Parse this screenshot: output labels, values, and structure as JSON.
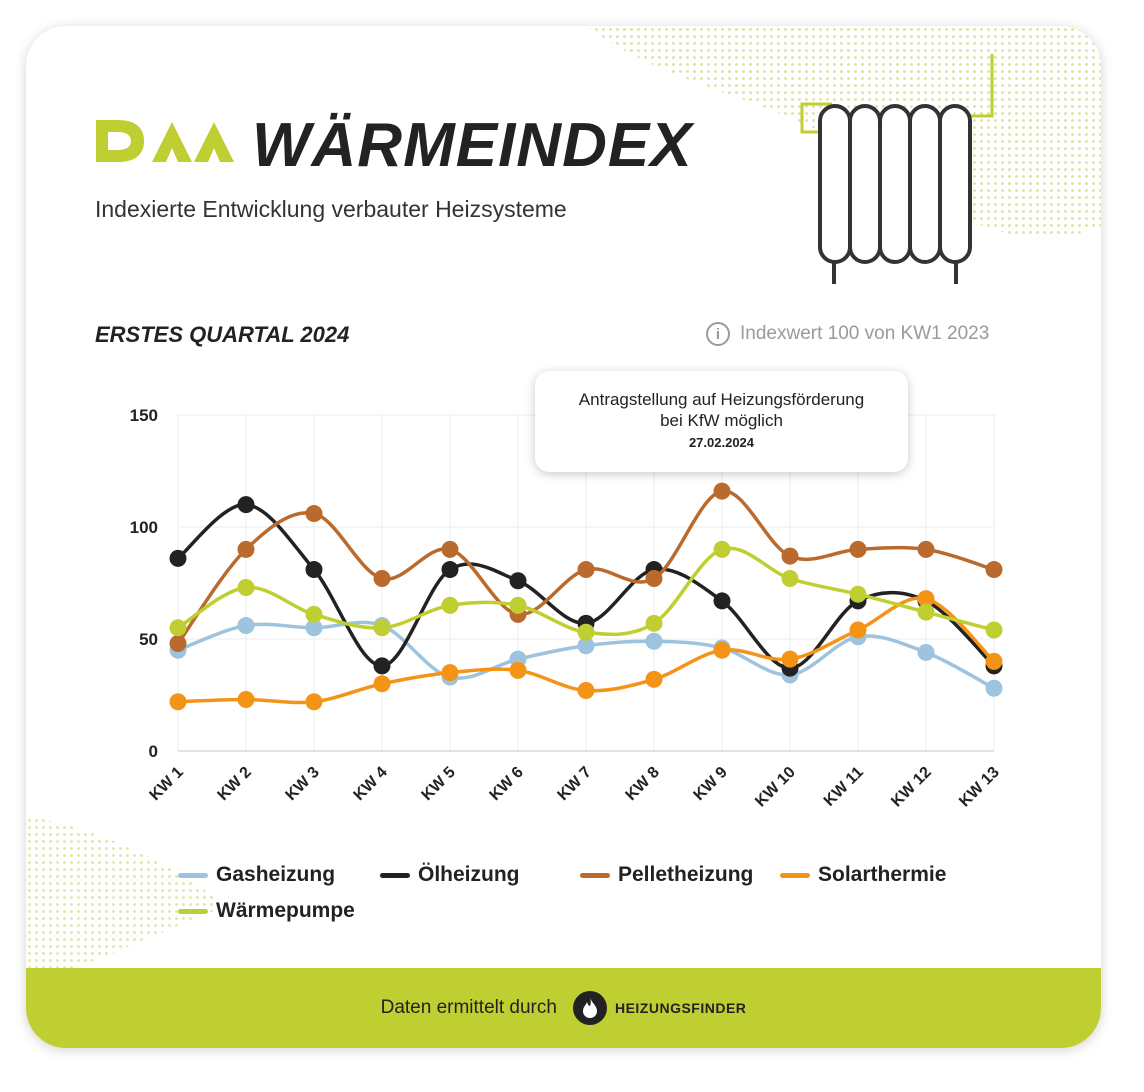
{
  "header": {
    "logo_text": "DAA",
    "title": "WÄRMEINDEX",
    "subtitle": "Indexierte Entwicklung verbauter Heizsysteme"
  },
  "section": {
    "title": "ERSTES QUARTAL 2024",
    "info": "Indexwert 100 von KW1 2023"
  },
  "tooltip": {
    "line1": "Antragstellung auf Heizungsförderung",
    "line2": "bei KfW möglich",
    "date": "27.02.2024"
  },
  "chart_data": {
    "type": "line",
    "categories": [
      "KW 1",
      "KW 2",
      "KW 3",
      "KW 4",
      "KW 5",
      "KW 6",
      "KW 7",
      "KW 8",
      "KW 9",
      "KW 10",
      "KW 11",
      "KW 12",
      "KW 13"
    ],
    "ylim": [
      0,
      150
    ],
    "yticks": [
      0,
      50,
      100,
      150
    ],
    "grid": true,
    "smooth": true,
    "legend_position": "bottom",
    "series": [
      {
        "name": "Gasheizung",
        "color": "#9dc3de",
        "values": [
          45,
          56,
          55,
          56,
          33,
          41,
          47,
          49,
          46,
          34,
          51,
          44,
          28
        ]
      },
      {
        "name": "Ölheizung",
        "color": "#222222",
        "values": [
          86,
          110,
          81,
          38,
          81,
          76,
          57,
          81,
          67,
          37,
          67,
          67,
          38
        ]
      },
      {
        "name": "Pelletheizung",
        "color": "#b96a2c",
        "values": [
          48,
          90,
          106,
          77,
          90,
          61,
          81,
          77,
          116,
          87,
          90,
          90,
          81
        ]
      },
      {
        "name": "Solarthermie",
        "color": "#f39416",
        "values": [
          22,
          23,
          22,
          30,
          35,
          36,
          27,
          32,
          45,
          41,
          54,
          68,
          40
        ]
      },
      {
        "name": "Wärmepumpe",
        "color": "#bfce30",
        "values": [
          55,
          73,
          61,
          55,
          65,
          65,
          53,
          57,
          90,
          77,
          70,
          62,
          54
        ]
      }
    ]
  },
  "footer": {
    "text": "Daten ermittelt durch",
    "brand": "HEIZUNGSFINDER"
  }
}
